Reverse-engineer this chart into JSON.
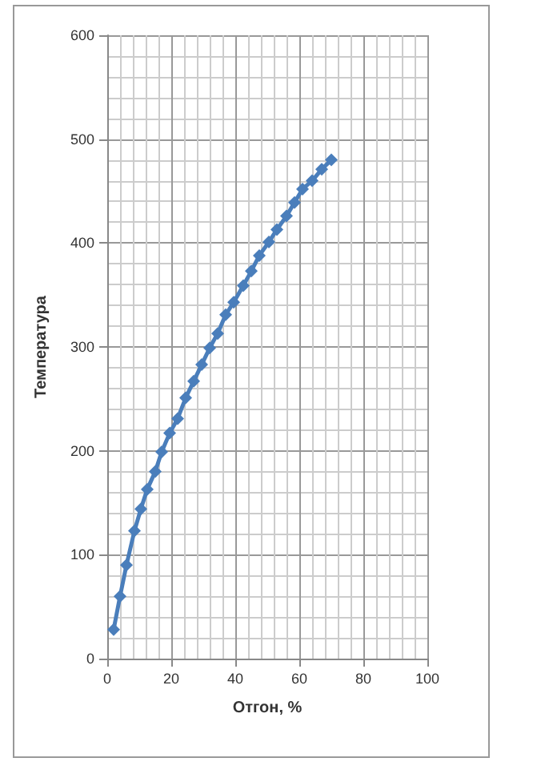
{
  "chart_data": {
    "type": "line",
    "xlabel": "Отгон, %",
    "ylabel": "Температура",
    "x": [
      2,
      4,
      6,
      8.5,
      10.5,
      12.5,
      15,
      17,
      19.5,
      22,
      24.5,
      27,
      29.5,
      32,
      34.5,
      37,
      39.5,
      42.5,
      45,
      47.5,
      50.5,
      53,
      56,
      58.5,
      61,
      64,
      67,
      70
    ],
    "series": [
      {
        "color": "#4a7ebb",
        "values": [
          28,
          60,
          90,
          123,
          144,
          163,
          180,
          199,
          217,
          231,
          251,
          267,
          283,
          299,
          313,
          331,
          343,
          359,
          373,
          388,
          401,
          413,
          426,
          439,
          452,
          460,
          471,
          480
        ]
      }
    ],
    "xlim": [
      0,
      100
    ],
    "xticks": [
      0,
      20,
      40,
      60,
      80,
      100
    ],
    "ylim": [
      0,
      600
    ],
    "yticks": [
      0,
      100,
      200,
      300,
      400,
      500,
      600
    ],
    "grid": true,
    "marker": "diamond",
    "line_style": "solid"
  }
}
